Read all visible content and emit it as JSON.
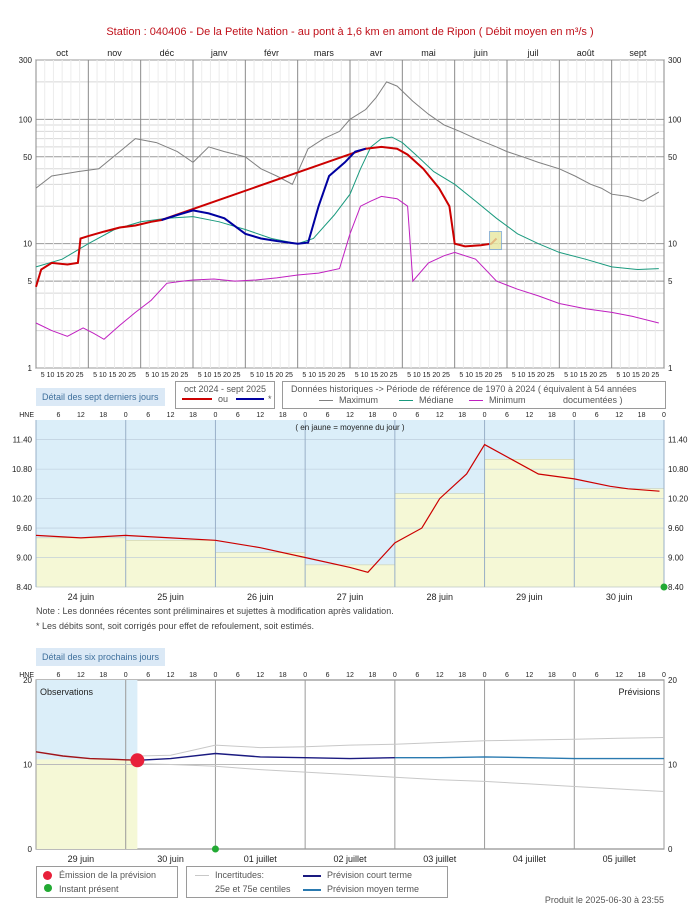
{
  "title": "Station : 040406      -   De la Petite Nation - au pont à 1,6 km en amont de Ripon   ( Débit moyen en m³/s )",
  "chart_data": [
    {
      "type": "line",
      "id": "annual",
      "x_months": [
        "oct",
        "nov",
        "déc",
        "janv",
        "févr",
        "mars",
        "avr",
        "mai",
        "juin",
        "juil",
        "août",
        "sept"
      ],
      "ylim": [
        1,
        300
      ],
      "y_scale": "log",
      "y_ticks": [
        "300",
        "100",
        "50",
        "10",
        "5",
        "1"
      ],
      "x_subticks": "5 10 15 20 25",
      "series": [
        {
          "name": "Maximum",
          "color": "#808080",
          "x": [
            0,
            0.3,
            0.8,
            1.2,
            1.6,
            1.9,
            2.3,
            2.7,
            3.0,
            3.3,
            3.6,
            4.0,
            4.3,
            4.6,
            4.9,
            5.2,
            5.5,
            5.8,
            6.0,
            6.3,
            6.5,
            6.7,
            6.9,
            7.2,
            7.5,
            7.8,
            8.1,
            8.4,
            8.8,
            9.0,
            9.3,
            9.6,
            10.0,
            10.3,
            10.6,
            10.8,
            11.0,
            11.3,
            11.6,
            11.9
          ],
          "values": [
            28,
            35,
            38,
            40,
            55,
            70,
            65,
            55,
            45,
            60,
            55,
            50,
            40,
            35,
            30,
            58,
            70,
            80,
            100,
            120,
            150,
            200,
            185,
            140,
            110,
            90,
            80,
            70,
            60,
            55,
            50,
            45,
            40,
            35,
            30,
            28,
            25,
            24,
            22,
            26
          ]
        },
        {
          "name": "Médiane",
          "color": "#1a9a7e",
          "x": [
            0,
            0.5,
            1.0,
            1.5,
            2.0,
            2.5,
            3.0,
            3.5,
            4.0,
            4.5,
            5.0,
            5.3,
            5.7,
            6.0,
            6.2,
            6.4,
            6.6,
            6.8,
            7.0,
            7.3,
            7.6,
            8.0,
            8.4,
            8.8,
            9.2,
            9.6,
            10.0,
            10.5,
            11.0,
            11.5,
            11.9
          ],
          "values": [
            6.5,
            7.5,
            10,
            13,
            15,
            16,
            16.5,
            15,
            13,
            11,
            10,
            11,
            17,
            25,
            40,
            60,
            70,
            72,
            65,
            50,
            38,
            30,
            22,
            16,
            12,
            10,
            8.5,
            7.5,
            6.5,
            6.2,
            6.3
          ]
        },
        {
          "name": "Minimum",
          "color": "#c020c0",
          "x": [
            0,
            0.3,
            0.6,
            0.9,
            1.1,
            1.3,
            1.6,
            1.9,
            2.2,
            2.5,
            2.8,
            3.0,
            3.4,
            3.8,
            4.2,
            4.6,
            5.0,
            5.4,
            5.8,
            6.0,
            6.2,
            6.4,
            6.6,
            6.9,
            7.1,
            7.2,
            7.5,
            7.8,
            8.0,
            8.4,
            8.8,
            9.2,
            9.6,
            10.0,
            10.5,
            11.0,
            11.4,
            11.9
          ],
          "values": [
            2.3,
            2.0,
            1.8,
            2.1,
            1.9,
            1.7,
            2.2,
            2.8,
            3.5,
            4.8,
            5.0,
            5.1,
            5.2,
            5.0,
            5.1,
            5.3,
            5.6,
            5.8,
            6.3,
            12,
            20,
            22,
            24,
            23,
            20,
            5.0,
            7.0,
            8.0,
            8.5,
            7.5,
            5.0,
            4.3,
            3.8,
            3.3,
            3.0,
            2.8,
            2.6,
            2.3
          ]
        },
        {
          "name": "oct 2024 - sept 2025",
          "color": "#cc0000",
          "x": [
            0,
            0.1,
            0.3,
            0.6,
            0.8,
            0.85,
            1.0,
            1.3,
            1.6,
            1.9,
            2.2,
            2.4,
            6.3,
            6.6,
            6.9,
            7.1,
            7.4,
            7.7,
            7.9,
            8.0,
            8.2,
            8.5,
            8.7,
            8.8
          ],
          "values": [
            4.5,
            6.2,
            7.0,
            6.8,
            7.0,
            11,
            11.5,
            12.5,
            13.5,
            14,
            15,
            15.5,
            58,
            60,
            58,
            52,
            40,
            28,
            20,
            10,
            9.5,
            9.7,
            10,
            11
          ]
        },
        {
          "name": "*",
          "color": "#0000a0",
          "x": [
            2.4,
            2.7,
            3.0,
            3.3,
            3.6,
            4.0,
            4.3,
            4.6,
            5.0,
            5.2,
            5.4,
            5.6,
            5.9,
            6.1,
            6.3
          ],
          "values": [
            15.5,
            17,
            18.5,
            17.5,
            16,
            12,
            11,
            10.5,
            10,
            10.2,
            20,
            35,
            45,
            55,
            58
          ]
        }
      ]
    },
    {
      "type": "line",
      "id": "last7days",
      "x_days": [
        "24 juin",
        "25 juin",
        "26 juin",
        "27 juin",
        "28 juin",
        "29 juin",
        "30 juin"
      ],
      "hours_top": [
        "6",
        "12",
        "18",
        "0"
      ],
      "ylim": [
        8.4,
        11.8
      ],
      "y_ticks": [
        "11.40",
        "10.80",
        "10.20",
        "9.60",
        "9.00",
        "8.40"
      ],
      "daily_mean": [
        9.4,
        9.35,
        9.1,
        8.85,
        10.3,
        11.0,
        10.4
      ],
      "series": [
        {
          "name": "Débit",
          "color": "#cc0000",
          "x": [
            0,
            0.5,
            1.0,
            1.5,
            2.0,
            2.5,
            3.0,
            3.5,
            3.7,
            4.0,
            4.3,
            4.5,
            4.8,
            5.0,
            5.3,
            5.6,
            6.0,
            6.4,
            6.6,
            6.95
          ],
          "values": [
            9.45,
            9.4,
            9.45,
            9.4,
            9.35,
            9.2,
            9.0,
            8.8,
            8.7,
            9.3,
            9.6,
            10.2,
            10.7,
            11.3,
            11.0,
            10.7,
            10.6,
            10.45,
            10.4,
            10.35
          ]
        }
      ]
    },
    {
      "type": "line",
      "id": "forecast6days",
      "x_days": [
        "29 juin",
        "30 juin",
        "01 juillet",
        "02 juillet",
        "03 juillet",
        "04 juillet",
        "05 juillet"
      ],
      "hours_top": [
        "6",
        "12",
        "18",
        "0"
      ],
      "ylim": [
        0,
        20
      ],
      "y_ticks": [
        "20",
        "10",
        "0"
      ],
      "series": [
        {
          "name": "Observations",
          "color": "#a0141a",
          "x": [
            0,
            0.3,
            0.6,
            0.9,
            1.13
          ],
          "values": [
            11.5,
            11.0,
            10.7,
            10.6,
            10.5
          ]
        },
        {
          "name": "Prévision court terme",
          "color": "#1a1a80",
          "x": [
            1.13,
            1.5,
            2.0,
            2.5,
            3.0,
            3.5,
            4.0
          ],
          "values": [
            10.5,
            10.7,
            11.3,
            10.9,
            10.8,
            10.7,
            10.8
          ]
        },
        {
          "name": "Prévision moyen terme",
          "color": "#2a7ab0",
          "x": [
            4.0,
            4.5,
            5.0,
            5.5,
            6.0,
            6.5,
            7.0
          ],
          "values": [
            10.8,
            10.8,
            10.9,
            10.8,
            10.7,
            10.7,
            10.7
          ]
        },
        {
          "name": "75e centile",
          "color": "#c8c8c8",
          "x": [
            1.13,
            1.5,
            2.0,
            2.5,
            3.0,
            3.5,
            4.0,
            4.5,
            5.0,
            5.5,
            6.0,
            6.5,
            7.0
          ],
          "values": [
            11.0,
            11.1,
            12.3,
            12.0,
            12.1,
            12.3,
            12.4,
            12.6,
            12.8,
            12.9,
            13.0,
            13.1,
            13.2
          ]
        },
        {
          "name": "25e centile",
          "color": "#c8c8c8",
          "x": [
            1.13,
            1.5,
            2.0,
            2.5,
            3.0,
            3.5,
            4.0,
            4.5,
            5.0,
            5.5,
            6.0,
            6.5,
            7.0
          ],
          "values": [
            10.1,
            10.0,
            9.8,
            9.4,
            9.1,
            8.8,
            8.5,
            8.2,
            8.0,
            7.7,
            7.4,
            7.1,
            6.8
          ]
        }
      ]
    }
  ],
  "annual_legend": {
    "period_title": "oct 2024 - sept 2025",
    "or_label": "ou",
    "star_label": "*",
    "hist_title": "Données historiques -> Période de référence  de 1970 à 2024   ( équivalent à 54 années",
    "max_label": "Maximum",
    "median_label": "Médiane",
    "min_label": "Minimum",
    "documented": "documentées )"
  },
  "panel7": {
    "label": "Détail des sept derniers jours",
    "hne": "HNE",
    "note_yellow": "( en jaune = moyenne du jour )"
  },
  "notes": {
    "line1": "Note : Les données récentes sont préliminaires et sujettes à modification après validation.",
    "line2": "* Les débits sont, soit corrigés pour effet de refoulement, soit estimés."
  },
  "panel6": {
    "label": "Détail des six prochains jours",
    "hne": "HNE",
    "obs_label": "Observations",
    "prev_label": "Prévisions"
  },
  "legend_forecast": {
    "emission": "Émission de la prévision",
    "present": "Instant présent",
    "uncert": "Incertitudes:",
    "uncert2": "25e et 75e centiles",
    "court": "Prévision court terme",
    "moyen": "Prévision moyen terme"
  },
  "footer": "Produit le 2025-06-30 à 23:55",
  "colors": {
    "observed": "#cc0000",
    "estimated": "#0000a0",
    "median": "#1a9a7e",
    "min": "#c020c0",
    "max": "#808080",
    "obsbg": "#dbeef9",
    "meanbg": "#f5f8d6"
  }
}
